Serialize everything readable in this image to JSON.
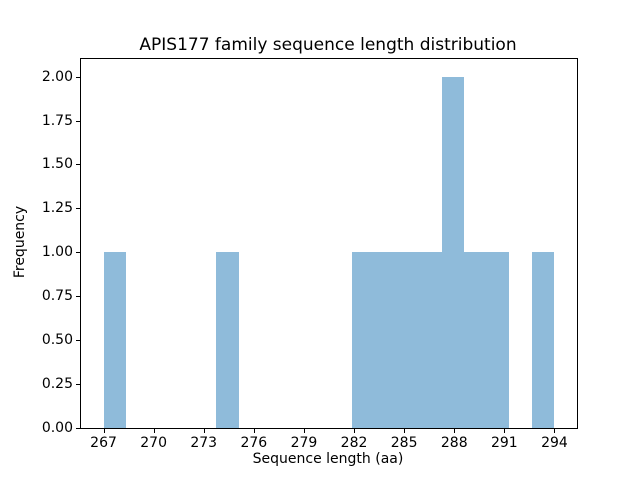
{
  "chart_data": {
    "type": "bar",
    "subtype": "histogram",
    "title": "APIS177 family sequence length distribution",
    "xlabel": "Sequence length (aa)",
    "ylabel": "Frequency",
    "bin_start": 267,
    "bin_width": 1.35,
    "counts": [
      1,
      0,
      0,
      0,
      0,
      1,
      0,
      0,
      0,
      0,
      0,
      1,
      1,
      1,
      1,
      2,
      1,
      1,
      0,
      1
    ],
    "xlim": [
      265.65,
      295.35
    ],
    "ylim": [
      0,
      2.1
    ],
    "xticks": [
      267,
      270,
      273,
      276,
      279,
      282,
      285,
      288,
      291,
      294
    ],
    "xtick_labels": [
      "267",
      "270",
      "273",
      "276",
      "279",
      "282",
      "285",
      "288",
      "291",
      "294"
    ],
    "yticks": [
      0,
      0.25,
      0.5,
      0.75,
      1.0,
      1.25,
      1.5,
      1.75,
      2.0
    ],
    "ytick_labels": [
      "0.00",
      "0.25",
      "0.50",
      "0.75",
      "1.00",
      "1.25",
      "1.50",
      "1.75",
      "2.00"
    ],
    "bar_color": "#8fbbda",
    "spine_color": "#000000",
    "background_color": "#ffffff",
    "grid": false,
    "legend": null
  }
}
